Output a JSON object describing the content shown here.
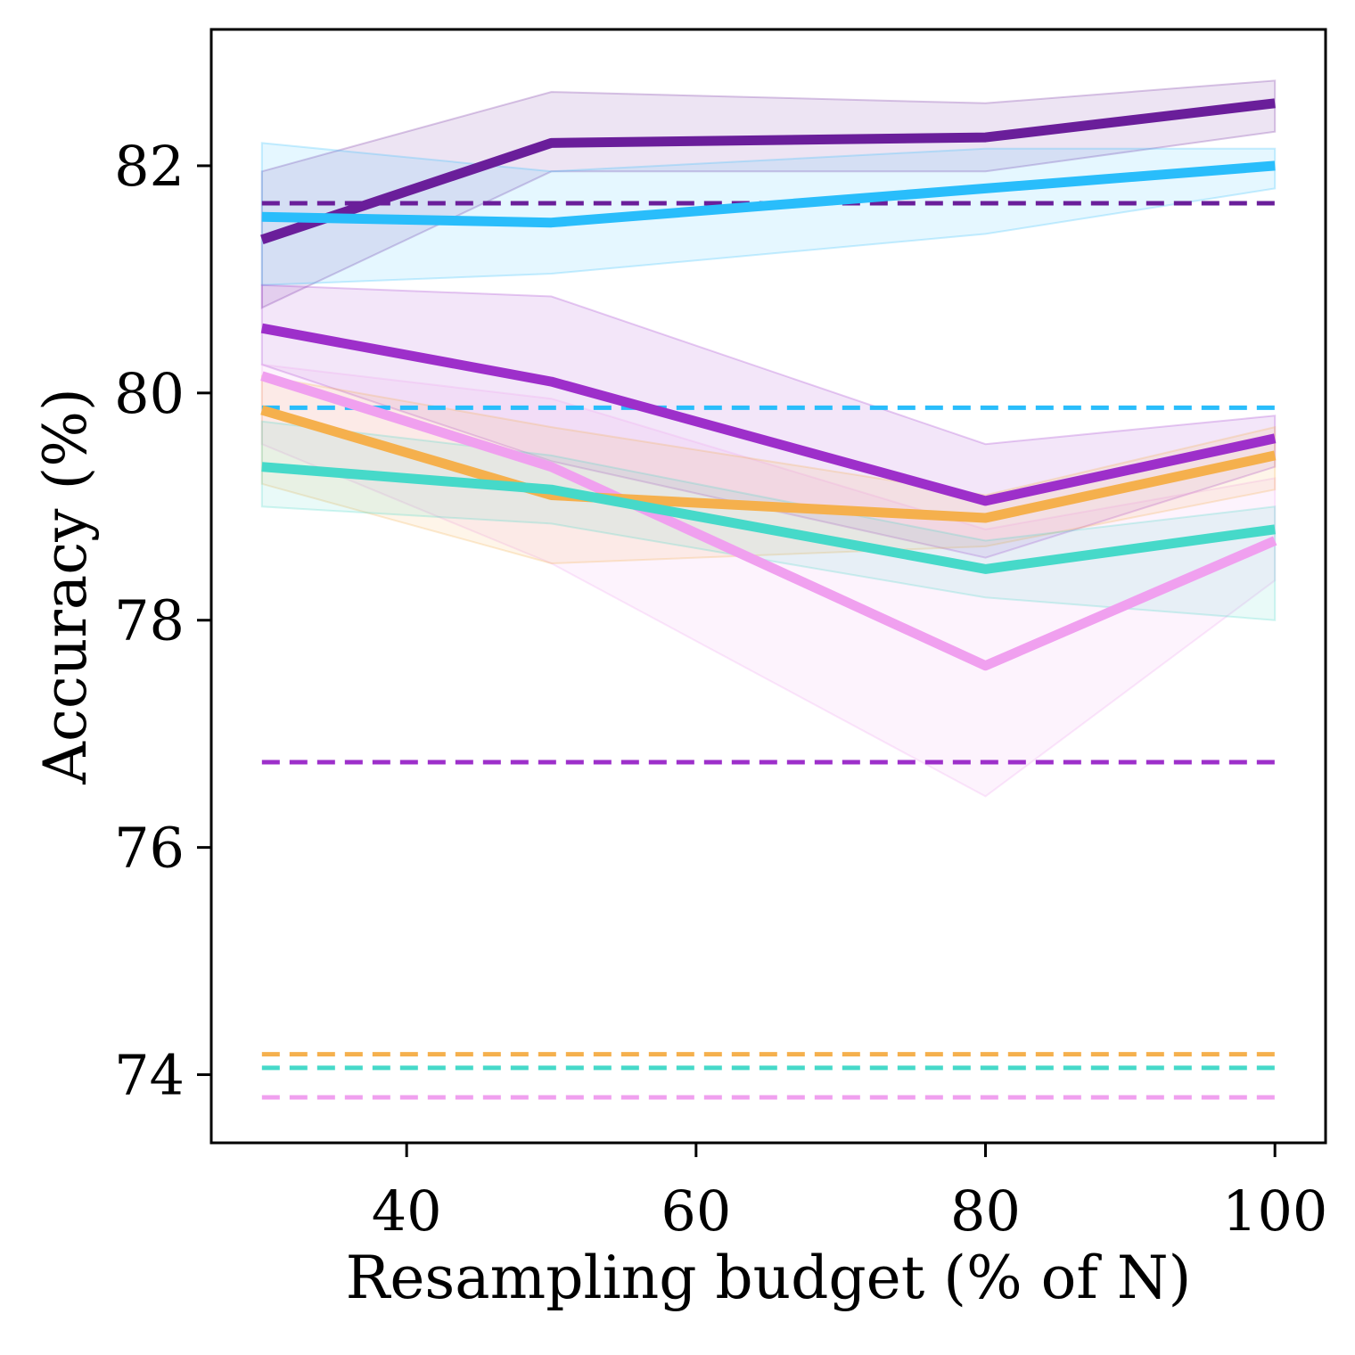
{
  "chart_data": {
    "type": "line",
    "title": "",
    "xlabel": "Resampling budget (% of N)",
    "ylabel": "Accuracy (%)",
    "xlim": [
      26.5,
      103.5
    ],
    "ylim": [
      73.4,
      83.2
    ],
    "xticks": [
      40,
      60,
      80,
      100
    ],
    "xtick_labels": [
      "40",
      "60",
      "80",
      "100"
    ],
    "yticks": [
      74,
      76,
      78,
      80,
      82
    ],
    "ytick_labels": [
      "74",
      "76",
      "78",
      "80",
      "82"
    ],
    "grid": false,
    "legend": null,
    "x": [
      30,
      50,
      80,
      100
    ],
    "series": [
      {
        "name": "series-dark-purple",
        "color": "#6a1e9a",
        "values": [
          81.35,
          82.2,
          82.25,
          82.55
        ],
        "lower": [
          80.75,
          81.95,
          81.95,
          82.3
        ],
        "upper": [
          81.95,
          82.65,
          82.55,
          82.75
        ],
        "baseline": 81.67
      },
      {
        "name": "series-sky-blue",
        "color": "#29bdfb",
        "values": [
          81.55,
          81.5,
          81.8,
          82.0
        ],
        "lower": [
          80.95,
          81.05,
          81.4,
          81.8
        ],
        "upper": [
          82.2,
          81.95,
          82.15,
          82.15
        ],
        "baseline": 79.87
      },
      {
        "name": "series-violet",
        "color": "#9d2fca",
        "values": [
          80.57,
          80.1,
          79.05,
          79.6
        ],
        "lower": [
          80.25,
          79.4,
          78.55,
          79.35
        ],
        "upper": [
          80.95,
          80.85,
          79.55,
          79.8
        ],
        "baseline": 76.75
      },
      {
        "name": "series-pink",
        "color": "#f0a0ef",
        "values": [
          80.15,
          79.35,
          77.6,
          78.7
        ],
        "lower": [
          79.55,
          78.5,
          76.45,
          78.35
        ],
        "upper": [
          80.25,
          79.95,
          78.8,
          79.25
        ],
        "baseline": 73.8
      },
      {
        "name": "series-orange",
        "color": "#f5b04d",
        "values": [
          79.85,
          79.1,
          78.9,
          79.45
        ],
        "lower": [
          79.2,
          78.5,
          78.65,
          79.15
        ],
        "upper": [
          80.15,
          79.7,
          79.1,
          79.7
        ],
        "baseline": 74.18
      },
      {
        "name": "series-teal",
        "color": "#46d9c9",
        "values": [
          79.35,
          79.15,
          78.45,
          78.8
        ],
        "lower": [
          79.0,
          78.85,
          78.2,
          78.0
        ],
        "upper": [
          79.75,
          79.45,
          78.7,
          79.0
        ],
        "baseline": 74.06
      }
    ]
  }
}
